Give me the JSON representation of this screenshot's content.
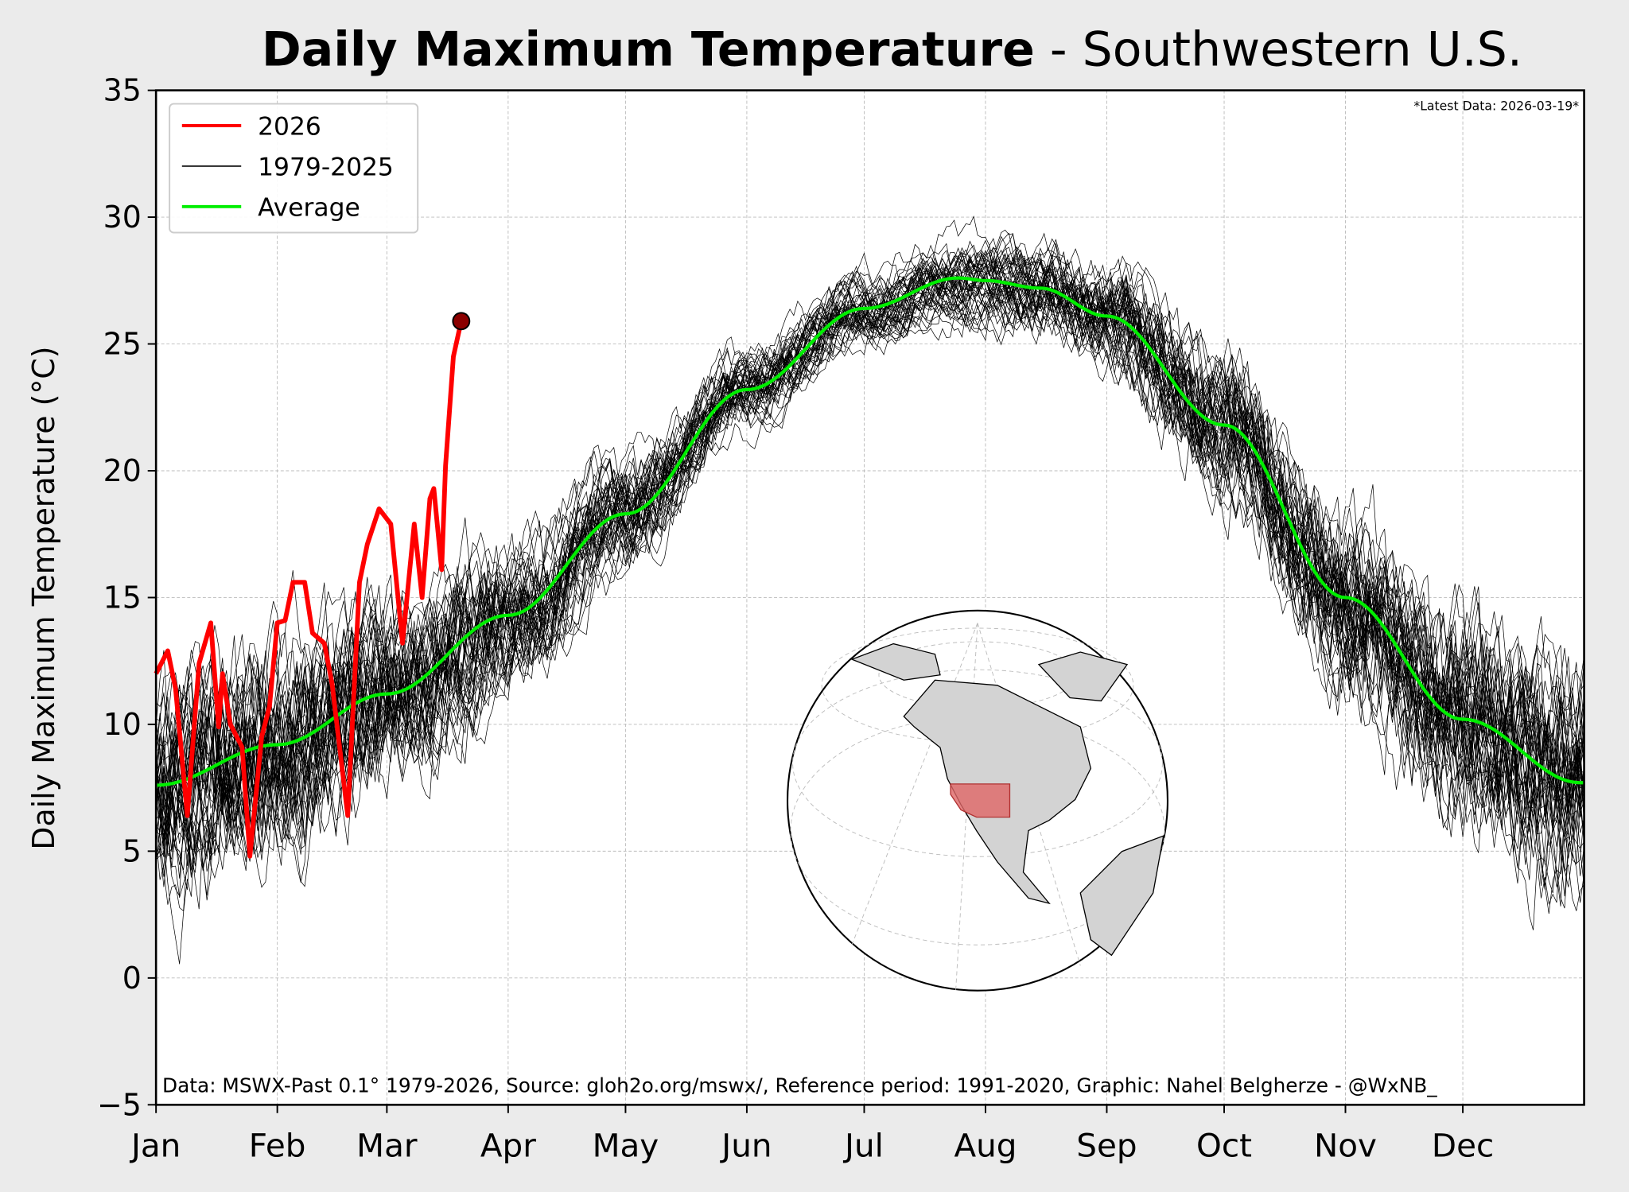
{
  "chart_data": {
    "type": "line",
    "title_bold": "Daily Maximum Temperature",
    "title_rest": " - Southwestern U.S.",
    "ylabel": "Daily Maximum Temperature (°C)",
    "xlabel": "",
    "ylim": [
      -5,
      35
    ],
    "yticks": [
      -5,
      0,
      5,
      10,
      15,
      20,
      25,
      30,
      35
    ],
    "xlim_day_of_year": [
      0,
      365
    ],
    "xticks": [
      {
        "label": "Jan",
        "day": 0
      },
      {
        "label": "Feb",
        "day": 31
      },
      {
        "label": "Mar",
        "day": 59
      },
      {
        "label": "Apr",
        "day": 90
      },
      {
        "label": "May",
        "day": 120
      },
      {
        "label": "Jun",
        "day": 151
      },
      {
        "label": "Jul",
        "day": 181
      },
      {
        "label": "Aug",
        "day": 212
      },
      {
        "label": "Sep",
        "day": 243
      },
      {
        "label": "Oct",
        "day": 273
      },
      {
        "label": "Nov",
        "day": 304
      },
      {
        "label": "Dec",
        "day": 334
      }
    ],
    "grid": true,
    "legend_placement": "top-left",
    "legend": [
      {
        "label": "2026",
        "color": "#ff0000"
      },
      {
        "label": "1979-2025",
        "color": "#000000"
      },
      {
        "label": "Average",
        "color": "#00ee00"
      }
    ],
    "annotation_latest": "*Latest Data: 2026-03-19*",
    "footer": "Data: MSWX-Past 0.1° 1979-2026, Source: gloh2o.org/mswx/, Reference period: 1991-2020, Graphic: Nahel Belgherze - @WxNB_",
    "series": [
      {
        "name": "2026",
        "color": "#ff0000",
        "points": [
          [
            0,
            12.0
          ],
          [
            3,
            12.9
          ],
          [
            5,
            11.4
          ],
          [
            8,
            6.4
          ],
          [
            11,
            12.4
          ],
          [
            14,
            14.0
          ],
          [
            16,
            9.9
          ],
          [
            17,
            12.0
          ],
          [
            19,
            10.0
          ],
          [
            22,
            9.1
          ],
          [
            24,
            4.8
          ],
          [
            27,
            9.5
          ],
          [
            29,
            10.7
          ],
          [
            31,
            14.0
          ],
          [
            33,
            14.1
          ],
          [
            35,
            15.6
          ],
          [
            38,
            15.6
          ],
          [
            40,
            13.6
          ],
          [
            43,
            13.2
          ],
          [
            45,
            11.6
          ],
          [
            49,
            6.4
          ],
          [
            52,
            15.6
          ],
          [
            54,
            17.1
          ],
          [
            57,
            18.5
          ],
          [
            60,
            17.9
          ],
          [
            63,
            13.2
          ],
          [
            66,
            17.9
          ],
          [
            68,
            15.0
          ],
          [
            70,
            18.9
          ],
          [
            71,
            19.3
          ],
          [
            73,
            16.1
          ],
          [
            74,
            20.2
          ],
          [
            76,
            24.5
          ],
          [
            78,
            25.9
          ]
        ]
      },
      {
        "name": "Average",
        "color": "#00ee00",
        "points": [
          [
            0,
            7.6
          ],
          [
            31,
            9.2
          ],
          [
            59,
            11.2
          ],
          [
            90,
            14.3
          ],
          [
            120,
            18.3
          ],
          [
            151,
            23.2
          ],
          [
            181,
            26.4
          ],
          [
            205,
            27.6
          ],
          [
            212,
            27.5
          ],
          [
            226,
            27.2
          ],
          [
            243,
            26.1
          ],
          [
            273,
            21.8
          ],
          [
            304,
            15.0
          ],
          [
            334,
            10.2
          ],
          [
            364,
            7.7
          ]
        ]
      },
      {
        "name": "1979-2025",
        "color": "#000000",
        "years": 47,
        "spread_c": 4
      }
    ],
    "inset": {
      "type": "globe",
      "highlighted_region": "Southwestern U.S.",
      "highlight_color": "#e06666"
    }
  }
}
